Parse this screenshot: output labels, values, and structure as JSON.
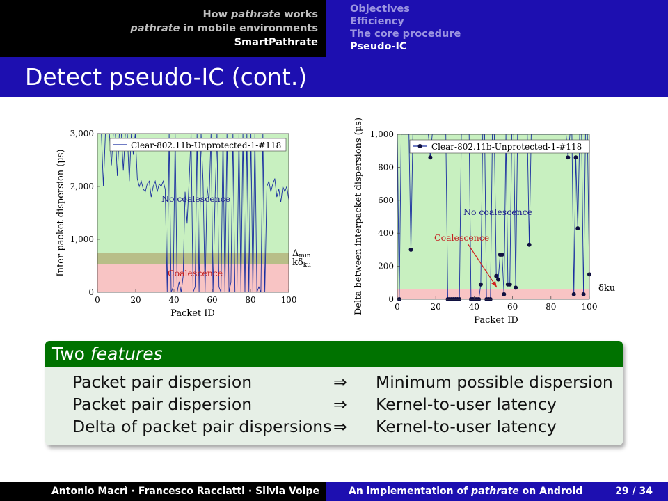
{
  "nav_left": {
    "item1_a": "How ",
    "item1_b": "pathrate",
    "item1_c": " works",
    "item2_a": "pathrate",
    "item2_b": " in mobile environments",
    "item3": "SmartPathrate"
  },
  "nav_right": [
    "Objectives",
    "Efficiency",
    "The core procedure",
    "Pseudo-IC"
  ],
  "title": "Detect pseudo-IC (cont.)",
  "chart_data": [
    {
      "type": "line",
      "ylabel": "Inter-packet dispersion (μs)",
      "xlabel": "Packet ID",
      "xticks": [
        "0",
        "20",
        "40",
        "60",
        "80",
        "100"
      ],
      "yticks": [
        "0",
        "1,000",
        "2,000",
        "3,000"
      ],
      "xlim": [
        0,
        100
      ],
      "ylim": [
        0,
        3000
      ],
      "legend": "Clear-802.11b-Unprotected-1-#118",
      "legend_position": "top-left",
      "regions": [
        {
          "label": "No coalescence",
          "color": "#c8f0c0"
        },
        {
          "label": "Coalescence",
          "color": "#f8c4c4"
        }
      ],
      "threshold_labels": [
        "Δ",
        "min",
        "kδ",
        "ku"
      ],
      "series": [
        {
          "values": [
            3000,
            3000,
            3000,
            2000,
            3000,
            3000,
            3000,
            2400,
            3000,
            3000,
            2200,
            3000,
            3000,
            2300,
            3000,
            3000,
            2100,
            3000,
            2600,
            3000,
            2150,
            2000,
            2100,
            1950,
            1900,
            2050,
            2100,
            1800,
            2000,
            2100,
            1900,
            2050,
            2000,
            2100,
            1950,
            0,
            3000,
            0,
            100,
            3000,
            0,
            200,
            0,
            300,
            1900,
            1300,
            2100,
            3000,
            0,
            100,
            3000,
            0,
            3000,
            2100,
            0,
            2000,
            1700,
            3000,
            0,
            1750,
            3000,
            100,
            0,
            3000,
            0,
            3000,
            0,
            200,
            3000,
            0,
            0,
            3000,
            0,
            3000,
            0,
            3000,
            0,
            3000,
            0,
            3000,
            0,
            100,
            0,
            3000,
            0,
            2000,
            2100,
            1900,
            2050,
            2150,
            1800,
            1950,
            1700,
            2000,
            1900,
            2000,
            1750
          ]
        }
      ]
    },
    {
      "type": "line",
      "ylabel": "Delta between interpacket dispersions (μs)",
      "xlabel": "Packet ID",
      "xticks": [
        "0",
        "20",
        "40",
        "60",
        "80",
        "100"
      ],
      "yticks": [
        "0",
        "200",
        "400",
        "600",
        "800",
        "1,000"
      ],
      "xlim": [
        0,
        100
      ],
      "ylim": [
        0,
        1000
      ],
      "legend": "Clear-802.11b-Unprotected-1-#118",
      "legend_position": "top-right",
      "regions": [
        {
          "label": "No coalescence",
          "color": "#c8f0c0"
        },
        {
          "label": "Coalescence",
          "color": "#f8c4c4"
        }
      ],
      "threshold_label": "δku",
      "series": [
        {
          "values": [
            1000,
            0,
            1000,
            1000,
            1000,
            1000,
            1000,
            300,
            1000,
            1000,
            1000,
            1000,
            1000,
            1000,
            1000,
            1000,
            1000,
            860,
            1000,
            1000,
            1000,
            1000,
            1000,
            1000,
            1000,
            1000,
            0,
            0,
            0,
            0,
            0,
            0,
            0,
            1000,
            1000,
            1000,
            1000,
            1000,
            0,
            0,
            0,
            0,
            0,
            90,
            1000,
            1000,
            0,
            0,
            0,
            1000,
            1000,
            140,
            120,
            270,
            270,
            30,
            1000,
            90,
            90,
            1000,
            1000,
            70,
            1000,
            1000,
            1000,
            1000,
            1000,
            1000,
            330,
            1000,
            1000,
            1000,
            1000,
            1000,
            1000,
            1000,
            1000,
            1000,
            1000,
            1000,
            1000,
            1000,
            1000,
            1000,
            1000,
            1000,
            1000,
            1000,
            860,
            1000,
            1000,
            30,
            860,
            430,
            1000,
            1000,
            30,
            1000,
            1000,
            150
          ]
        }
      ]
    }
  ],
  "block": {
    "title_a": "Two ",
    "title_b": "features",
    "rows": [
      {
        "left": "Packet pair dispersion",
        "arrow": "⇒",
        "right": "Minimum possible dispersion"
      },
      {
        "left": "Packet pair dispersion",
        "arrow": "⇒",
        "right": "Kernel-to-user latency"
      },
      {
        "left": "Delta of packet pair dispersions",
        "arrow": "⇒",
        "right": "Kernel-to-user latency"
      }
    ]
  },
  "footer": {
    "a1": "Antonio Macrì",
    "sep1": " · ",
    "a2": "Francesco Racciatti",
    "sep2": " · ",
    "a3": "Silvia Volpe",
    "t1": "An implementation of ",
    "t2": "pathrate",
    "t3": " on Android",
    "page": "29 / 34"
  }
}
